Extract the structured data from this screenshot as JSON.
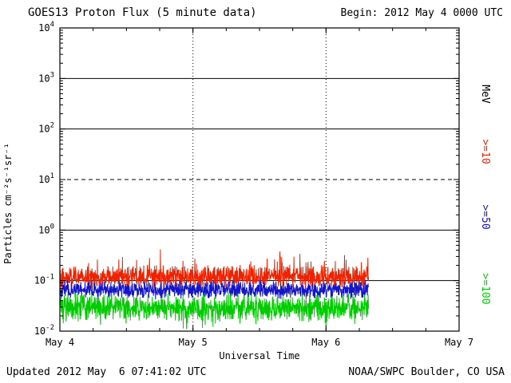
{
  "header": {
    "title": "GOES13 Proton Flux (5 minute data)",
    "begin_label": "Begin: 2012 May 4 0000 UTC"
  },
  "footer": {
    "updated_label": "Updated 2012 May  6 07:41:02 UTC",
    "source_label": "NOAA/SWPC Boulder, CO USA"
  },
  "chart_data": {
    "type": "line",
    "title": "GOES13 Proton Flux (5 minute data)",
    "begin": "2012 May 4 0000 UTC",
    "updated": "2012 May 6 07:41:02 UTC",
    "xlabel": "Universal Time",
    "ylabel": "Particles cm⁻²s⁻¹sr⁻¹",
    "right_axis_unit": "MeV",
    "x_axis": {
      "tick_labels": [
        "May 4",
        "May 5",
        "May 6",
        "May 7"
      ],
      "range_days": [
        0,
        3
      ],
      "dotted_day_gridlines": [
        1,
        2
      ]
    },
    "y_axis": {
      "scale": "log10",
      "exponent_ticks": [
        4,
        3,
        2,
        1,
        0,
        -1,
        -2
      ],
      "range": [
        0.01,
        10000
      ]
    },
    "gridlines": {
      "solid_exponents": [
        3,
        2,
        0,
        -1
      ],
      "dashed_exponents": [
        1
      ]
    },
    "legend_position": "right-outside",
    "series": [
      {
        "name": "Proton flux >=10 MeV",
        "legend_label": ">=10",
        "color": "#EE2200",
        "start_day": 0.0,
        "end_day": 2.32,
        "cadence_minutes": 5,
        "approx_log10_center": -0.93,
        "approx_log10_noise": 0.25,
        "approx_flux_range": [
          0.06,
          0.4
        ]
      },
      {
        "name": "Proton flux >=50 MeV",
        "legend_label": ">=50",
        "color": "#1414CC",
        "start_day": 0.0,
        "end_day": 2.32,
        "cadence_minutes": 5,
        "approx_log10_center": -1.18,
        "approx_log10_noise": 0.2,
        "approx_flux_range": [
          0.04,
          0.11
        ]
      },
      {
        "name": "Proton flux >=100 MeV",
        "legend_label": ">=100",
        "color": "#00CC00",
        "start_day": 0.0,
        "end_day": 2.32,
        "cadence_minutes": 5,
        "approx_log10_center": -1.53,
        "approx_log10_noise": 0.3,
        "approx_flux_range": [
          0.013,
          0.08
        ]
      }
    ]
  }
}
